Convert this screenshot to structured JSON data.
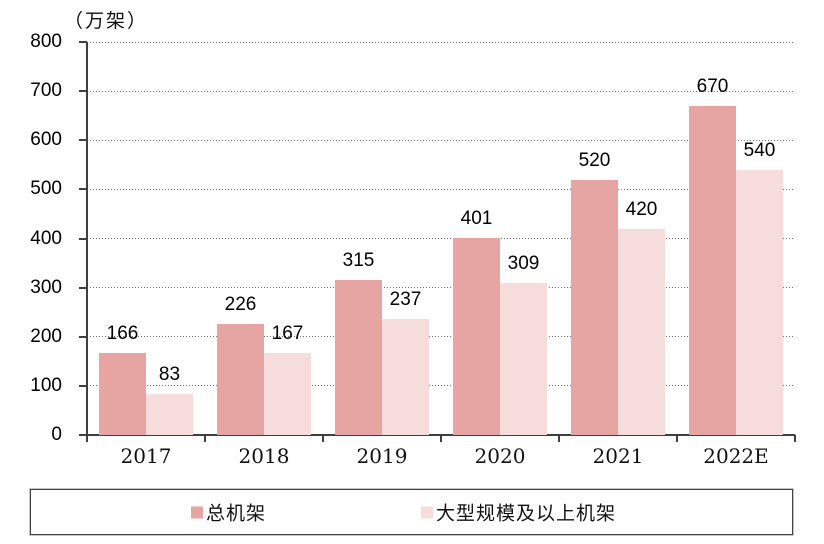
{
  "chart_data": {
    "type": "bar",
    "title": "",
    "axis_unit": "（万架）",
    "categories": [
      "2017",
      "2018",
      "2019",
      "2020",
      "2021",
      "2022E"
    ],
    "series": [
      {
        "name": "总机架",
        "color": "#e6a5a2",
        "values": [
          166,
          226,
          315,
          401,
          520,
          670
        ]
      },
      {
        "name": "大型规模及以上机架",
        "color": "#f6dcda",
        "values": [
          83,
          167,
          237,
          309,
          420,
          540
        ]
      }
    ],
    "ylim": [
      0,
      800
    ],
    "ytick_step": 100,
    "grid": "horizontal-dotted",
    "legend_position": "bottom-boxed",
    "colors": {
      "axis": "#3f3f3f",
      "gridline": "#6e6e6e",
      "text": "#000000"
    }
  }
}
